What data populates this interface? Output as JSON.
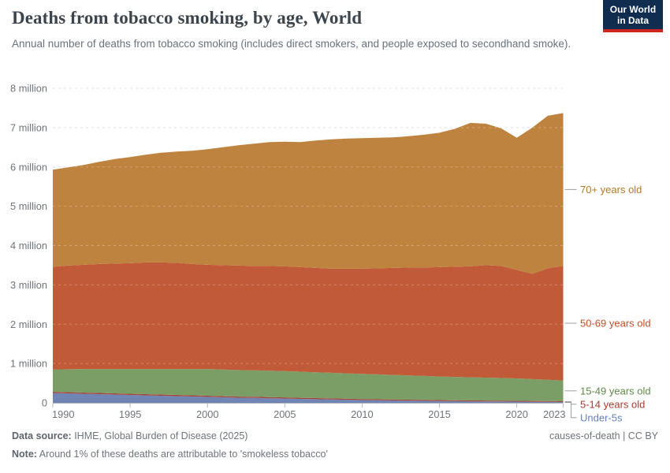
{
  "header": {
    "title": "Deaths from tobacco smoking, by age, World",
    "subtitle": "Annual number of deaths from tobacco smoking (includes direct smokers, and people exposed to secondhand smoke).",
    "logo": {
      "line1": "Our World",
      "line2": "in Data",
      "bg_color": "#102d4f",
      "accent_color": "#ce261e"
    }
  },
  "footer": {
    "datasource_label": "Data source:",
    "datasource_value": " IHME, Global Burden of Disease (2025)",
    "right_text": "causes-of-death | CC BY",
    "note_label": "Note:",
    "note_value": " Around 1% of these deaths are attributable to 'smokeless tobacco'"
  },
  "chart_data": {
    "type": "area",
    "stacked": true,
    "title": "Deaths from tobacco smoking, by age, World",
    "values_unit": "millions of deaths per year",
    "xlabel": "",
    "ylabel": "",
    "ylim_millions": [
      0,
      8
    ],
    "grid": "dashed horizontal gridlines",
    "legend_position": "right edge labels with connectors",
    "x": [
      1990,
      1991,
      1992,
      1993,
      1994,
      1995,
      1996,
      1997,
      1998,
      1999,
      2000,
      2001,
      2002,
      2003,
      2004,
      2005,
      2006,
      2007,
      2008,
      2009,
      2010,
      2011,
      2012,
      2013,
      2014,
      2015,
      2016,
      2017,
      2018,
      2019,
      2020,
      2021,
      2022,
      2023
    ],
    "x_ticks": [
      1990,
      1995,
      2000,
      2005,
      2010,
      2015,
      2020,
      2023
    ],
    "y_ticks": [
      {
        "v": 0,
        "label": "0"
      },
      {
        "v": 1,
        "label": "1 million"
      },
      {
        "v": 2,
        "label": "2 million"
      },
      {
        "v": 3,
        "label": "3 million"
      },
      {
        "v": 4,
        "label": "4 million"
      },
      {
        "v": 5,
        "label": "5 million"
      },
      {
        "v": 6,
        "label": "6 million"
      },
      {
        "v": 7,
        "label": "7 million"
      },
      {
        "v": 8,
        "label": "8 million"
      }
    ],
    "series": [
      {
        "name": "Under-5s",
        "fill": "#7185b5",
        "label_color": "#6480be",
        "values": [
          0.25,
          0.24,
          0.23,
          0.22,
          0.21,
          0.2,
          0.19,
          0.18,
          0.17,
          0.16,
          0.15,
          0.14,
          0.13,
          0.125,
          0.118,
          0.11,
          0.1,
          0.092,
          0.085,
          0.078,
          0.07,
          0.065,
          0.06,
          0.055,
          0.05,
          0.045,
          0.042,
          0.039,
          0.036,
          0.033,
          0.03,
          0.027,
          0.024,
          0.02
        ]
      },
      {
        "name": "5-14 years old",
        "fill": "#a5433b",
        "label_color": "#a93c31",
        "values": [
          0.03,
          0.03,
          0.03,
          0.03,
          0.03,
          0.03,
          0.03,
          0.03,
          0.03,
          0.03,
          0.03,
          0.029,
          0.029,
          0.029,
          0.028,
          0.028,
          0.028,
          0.028,
          0.028,
          0.027,
          0.027,
          0.026,
          0.026,
          0.026,
          0.025,
          0.025,
          0.024,
          0.023,
          0.023,
          0.022,
          0.022,
          0.021,
          0.02,
          0.02
        ]
      },
      {
        "name": "15-49 years old",
        "fill": "#7b9e67",
        "label_color": "#5f8a47",
        "values": [
          0.57,
          0.585,
          0.6,
          0.61,
          0.62,
          0.63,
          0.64,
          0.65,
          0.66,
          0.67,
          0.68,
          0.678,
          0.675,
          0.672,
          0.67,
          0.67,
          0.664,
          0.657,
          0.65,
          0.645,
          0.64,
          0.632,
          0.624,
          0.616,
          0.608,
          0.6,
          0.594,
          0.588,
          0.582,
          0.576,
          0.57,
          0.556,
          0.543,
          0.53
        ]
      },
      {
        "name": "50-69 years old",
        "fill": "#c15a38",
        "label_color": "#c34e27",
        "values": [
          2.61,
          2.635,
          2.65,
          2.67,
          2.68,
          2.69,
          2.71,
          2.71,
          2.7,
          2.67,
          2.65,
          2.653,
          2.656,
          2.654,
          2.664,
          2.662,
          2.658,
          2.653,
          2.647,
          2.66,
          2.673,
          2.697,
          2.72,
          2.743,
          2.757,
          2.78,
          2.8,
          2.82,
          2.859,
          2.849,
          2.758,
          2.676,
          2.833,
          2.91
        ]
      },
      {
        "name": "70+ years old",
        "fill": "#bf8340",
        "label_color": "#b57a28",
        "values": [
          2.47,
          2.5,
          2.54,
          2.6,
          2.66,
          2.7,
          2.74,
          2.79,
          2.83,
          2.88,
          2.94,
          3.0,
          3.06,
          3.11,
          3.15,
          3.17,
          3.18,
          3.24,
          3.29,
          3.31,
          3.32,
          3.32,
          3.32,
          3.34,
          3.38,
          3.42,
          3.51,
          3.65,
          3.6,
          3.5,
          3.36,
          3.72,
          3.88,
          3.89
        ]
      }
    ]
  }
}
